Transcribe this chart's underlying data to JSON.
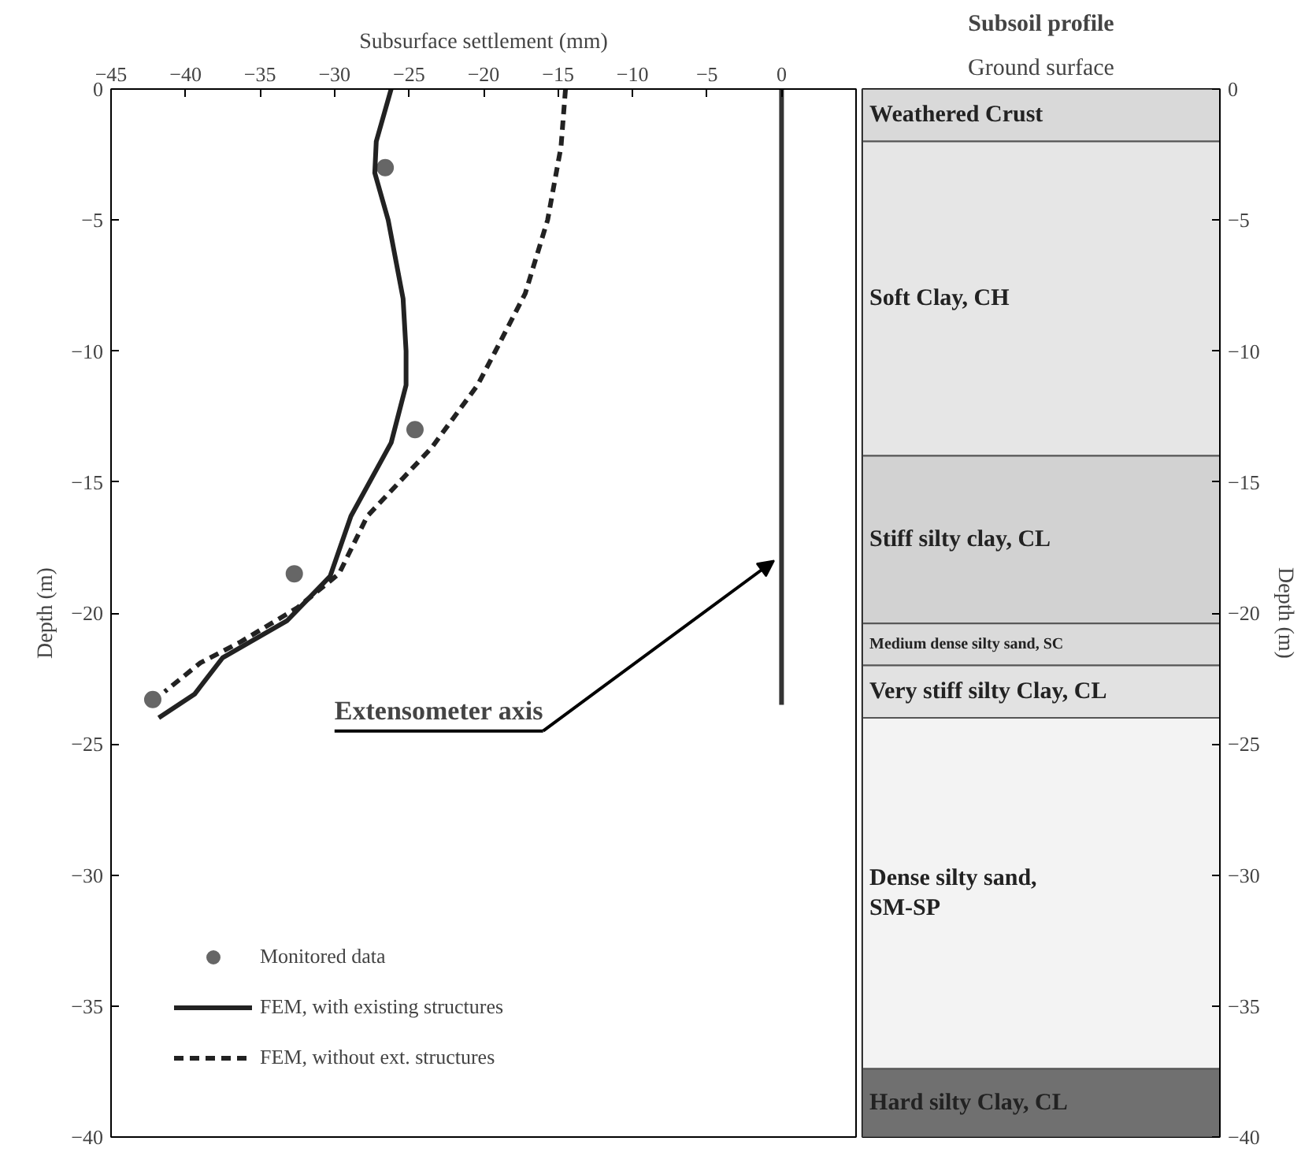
{
  "chart_data": [
    {
      "type": "line",
      "xlabel": "Subsurface settlement (mm)",
      "ylabel": "Depth (m)",
      "xlim": [
        -45,
        5
      ],
      "xticks": [
        -45,
        -40,
        -35,
        -30,
        -25,
        -20,
        -15,
        -10,
        -5,
        0
      ],
      "ylim": [
        -40,
        0
      ],
      "yticks": [
        0,
        -5,
        -10,
        -15,
        -20,
        -25,
        -30,
        -35,
        -40
      ],
      "grid": false,
      "legend": "bottom left",
      "series": [
        {
          "name": "Monitored data",
          "type": "scatter",
          "marker": "circle",
          "color": "#666666",
          "x": [
            -26.6,
            -24.6,
            -32.7,
            -42.2
          ],
          "values": [
            -3.0,
            -13.0,
            -18.5,
            -23.3
          ]
        },
        {
          "name": "FEM, with existing structures",
          "type": "line",
          "line_style": "solid",
          "color": "#222222",
          "x": [
            -26.2,
            -27.2,
            -27.3,
            -26.4,
            -25.4,
            -25.2,
            -25.2,
            -26.2,
            -28.9,
            -30.3,
            -33.2,
            -37.5,
            -39.4,
            -41.8
          ],
          "values": [
            0,
            -2,
            -3.2,
            -5,
            -8,
            -10,
            -11.3,
            -13.5,
            -16.3,
            -18.6,
            -20.3,
            -21.7,
            -23.1,
            -24
          ]
        },
        {
          "name": "FEM, without ext. structures",
          "type": "line",
          "line_style": "dashed",
          "color": "#222222",
          "x": [
            -14.5,
            -14.8,
            -15.7,
            -17.2,
            -19.2,
            -20.4,
            -23.5,
            -27.8,
            -29.7,
            -32.5,
            -36.3,
            -39.0,
            -41.4
          ],
          "values": [
            0,
            -2.2,
            -5,
            -7.8,
            -10,
            -11.3,
            -13.7,
            -16.3,
            -18.5,
            -19.8,
            -21.1,
            -21.9,
            -23
          ]
        },
        {
          "type": "line",
          "line_style": "solid",
          "color": "#333333",
          "x": [
            0,
            0
          ],
          "values": [
            0,
            -23.5
          ]
        }
      ],
      "annotations": [
        {
          "text": "Extensometer axis",
          "x": 0,
          "y": -18
        }
      ]
    },
    {
      "type": "bar",
      "stacked": true,
      "title": "Subsoil profile",
      "subtitle": "Ground surface",
      "ylabel": "Depth (m)",
      "ylim": [
        -40,
        0
      ],
      "yticks": [
        0,
        -5,
        -10,
        -15,
        -20,
        -25,
        -30,
        -35,
        -40
      ],
      "tick_labels": "y",
      "categories": [
        null
      ],
      "legend": false,
      "series": [
        {
          "name": "Weathered Crust",
          "color": "#d9d9d9",
          "values": [
            -2
          ]
        },
        {
          "name": "Soft Clay, CH",
          "color": "#e6e6e6",
          "values": [
            -12
          ]
        },
        {
          "name": "Stiff silty clay, CL",
          "color": "#d2d2d2",
          "values": [
            -6.4
          ]
        },
        {
          "name": "Medium dense silty sand, SC",
          "color": "#dadada",
          "values": [
            -1.6
          ]
        },
        {
          "name": "Very stiff silty Clay, CL",
          "color": "#e2e2e2",
          "values": [
            -2
          ]
        },
        {
          "name": "Dense silty sand,\nSM-SP",
          "color": "#f3f3f3",
          "values": [
            -13.4
          ]
        },
        {
          "name": "Hard silty Clay, CL",
          "color": "#707070",
          "values": [
            -2.6
          ]
        }
      ]
    }
  ]
}
